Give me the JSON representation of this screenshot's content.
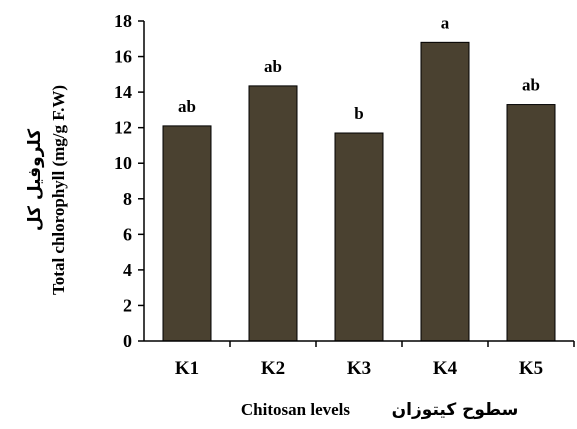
{
  "chart_data": {
    "type": "bar",
    "categories": [
      "K1",
      "K2",
      "K3",
      "K4",
      "K5"
    ],
    "values": [
      12.1,
      14.35,
      11.7,
      16.8,
      13.3
    ],
    "significance_labels": [
      "ab",
      "ab",
      "b",
      "a",
      "ab"
    ],
    "xlabel_en": "Chitosan levels",
    "xlabel_fa": "سطوح کیتوزان",
    "ylabel_en": "Total chlorophyll (mg/g F.W)",
    "ylabel_fa": "کلروفیل کل",
    "ylim": [
      0,
      18
    ],
    "yticks": [
      "0",
      "2",
      "4",
      "6",
      "8",
      "10",
      "12",
      "14",
      "16",
      "18"
    ],
    "grid": false,
    "bar_color": "#4a4130",
    "bar_edge_color": "#000000"
  }
}
